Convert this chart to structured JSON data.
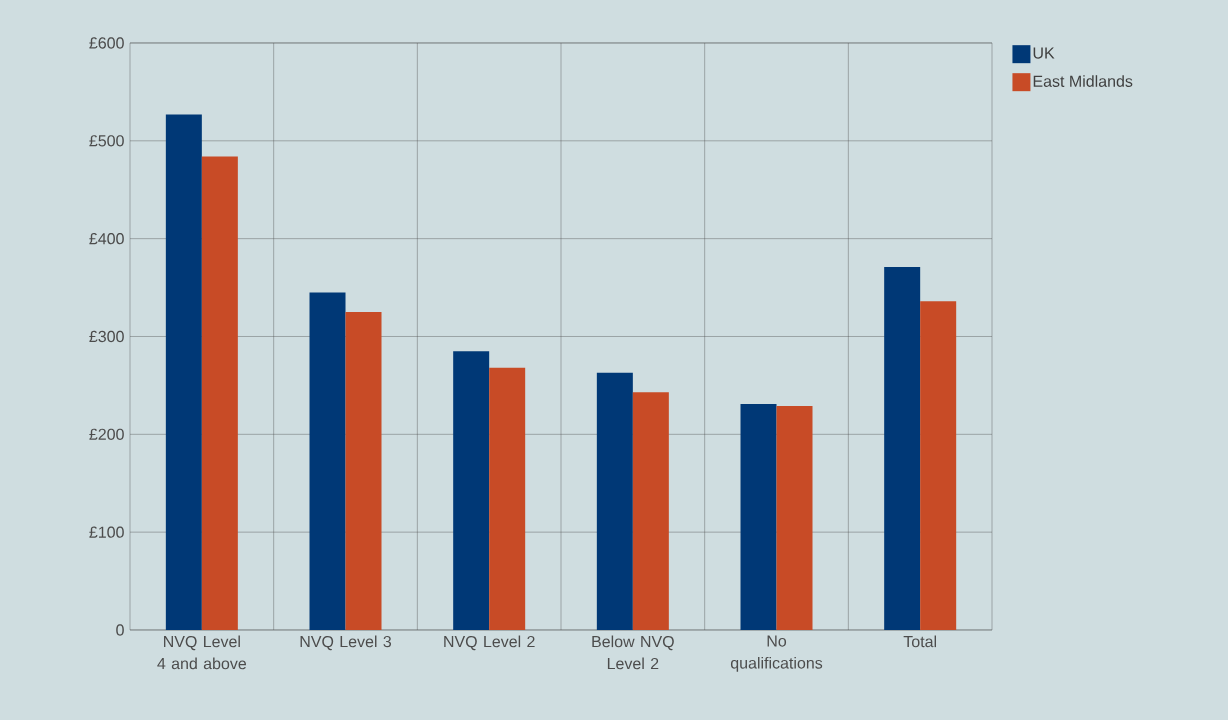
{
  "chart_data": {
    "type": "bar",
    "categories": [
      "NVQ Level 4 and above",
      "NVQ Level 3",
      "NVQ Level 2",
      "Below NVQ Level 2",
      "No qualifications",
      "Total"
    ],
    "series": [
      {
        "name": "UK",
        "color": "#003876",
        "values": [
          527,
          345,
          285,
          263,
          231,
          371
        ]
      },
      {
        "name": "East Midlands",
        "color": "#c84b26",
        "values": [
          484,
          325,
          268,
          243,
          229,
          336
        ]
      }
    ],
    "ylim": [
      0,
      600
    ],
    "yticks": [
      0,
      {
        "value": 100,
        "label": "£100"
      },
      {
        "value": 200,
        "label": "£200"
      },
      {
        "value": 300,
        "label": "£300"
      },
      {
        "value": 400,
        "label": "£400"
      },
      {
        "value": 500,
        "label": "£500"
      },
      {
        "value": 600,
        "label": "£600"
      }
    ],
    "grid": true,
    "legend": "top right"
  }
}
